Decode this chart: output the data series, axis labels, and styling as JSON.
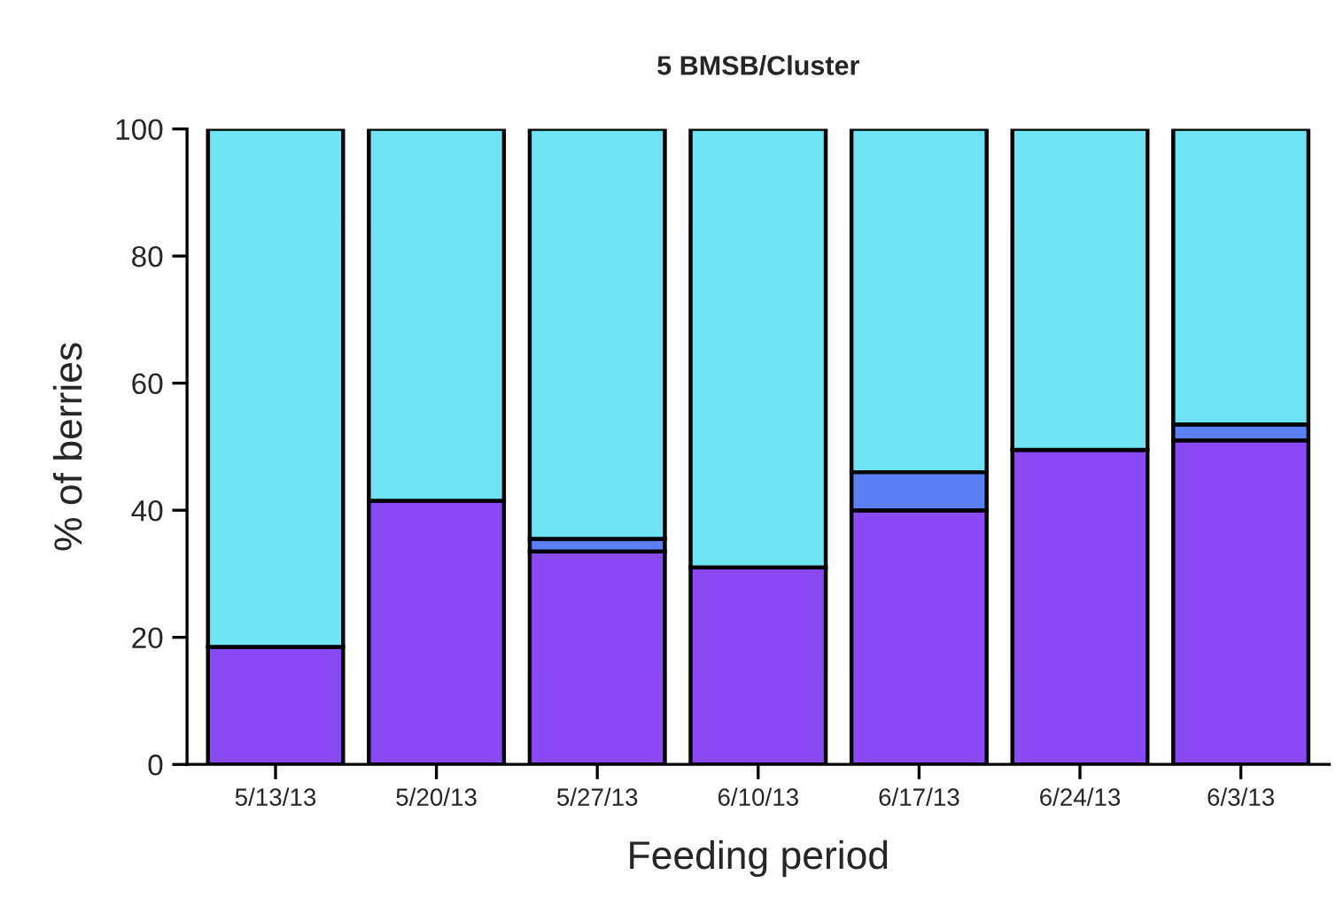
{
  "chart_data": {
    "type": "bar",
    "title": "5 BMSB/Cluster",
    "xlabel": "Feeding period",
    "ylabel": "% of berries",
    "categories": [
      "5/13/13",
      "5/20/13",
      "5/27/13",
      "6/10/13",
      "6/17/13",
      "6/24/13",
      "6/3/13"
    ],
    "stacked": true,
    "series": [
      {
        "color": "#8a4af6",
        "values": [
          18.5,
          41.5,
          33.5,
          31,
          40,
          49.5,
          51
        ]
      },
      {
        "color": "#5b7ff5",
        "values": [
          0,
          0,
          2,
          0,
          6,
          0,
          2.5
        ]
      },
      {
        "color": "#6ee3f4",
        "values": [
          81.5,
          58.5,
          64.5,
          69,
          54,
          50.5,
          46.5
        ]
      }
    ],
    "ylim": [
      0,
      100
    ],
    "yticks": [
      0,
      20,
      40,
      60,
      80,
      100
    ],
    "grid": false
  }
}
